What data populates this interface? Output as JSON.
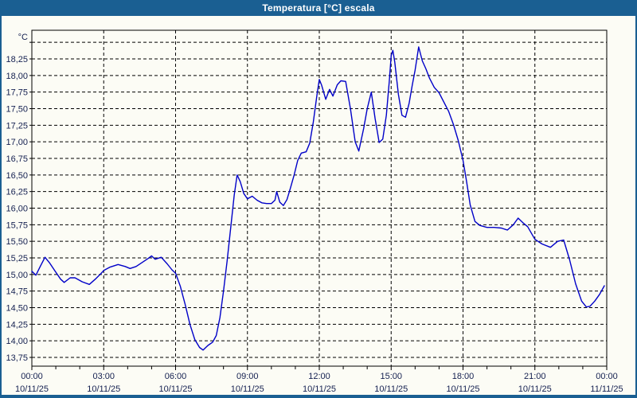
{
  "window": {
    "title": "Temperatura [°C] escala",
    "frame_color": "#1A5F92",
    "title_text_color": "#ffffff"
  },
  "chart_data": {
    "type": "line",
    "title": "Temperatura [°C] escala",
    "unit_label": "°C",
    "line_color": "#0000C8",
    "grid_color": "#000000",
    "label_color": "#142050",
    "grid_style": "dashed",
    "legend": "none",
    "xlim_hours": [
      0,
      24
    ],
    "ylim": [
      13.6,
      18.67
    ],
    "y_ticks": [
      {
        "value": 13.75,
        "label": "13,75"
      },
      {
        "value": 14.0,
        "label": "14,00"
      },
      {
        "value": 14.25,
        "label": "14,25"
      },
      {
        "value": 14.5,
        "label": "14,50"
      },
      {
        "value": 14.75,
        "label": "14,75"
      },
      {
        "value": 15.0,
        "label": "15,00"
      },
      {
        "value": 15.25,
        "label": "15,25"
      },
      {
        "value": 15.5,
        "label": "15,50"
      },
      {
        "value": 15.75,
        "label": "15,75"
      },
      {
        "value": 16.0,
        "label": "16,00"
      },
      {
        "value": 16.25,
        "label": "16,25"
      },
      {
        "value": 16.5,
        "label": "16,50"
      },
      {
        "value": 16.75,
        "label": "16,75"
      },
      {
        "value": 17.0,
        "label": "17,00"
      },
      {
        "value": 17.25,
        "label": "17,25"
      },
      {
        "value": 17.5,
        "label": "17,50"
      },
      {
        "value": 17.75,
        "label": "17,75"
      },
      {
        "value": 18.0,
        "label": "18,00"
      },
      {
        "value": 18.25,
        "label": "18,25"
      },
      {
        "value": 18.5,
        "label": ""
      }
    ],
    "x_ticks": [
      {
        "hour": 0,
        "time": "00:00",
        "date": "10/11/25"
      },
      {
        "hour": 3,
        "time": "03:00",
        "date": "10/11/25"
      },
      {
        "hour": 6,
        "time": "06:00",
        "date": "10/11/25"
      },
      {
        "hour": 9,
        "time": "09:00",
        "date": "10/11/25"
      },
      {
        "hour": 12,
        "time": "12:00",
        "date": "10/11/25"
      },
      {
        "hour": 15,
        "time": "15:00",
        "date": "10/11/25"
      },
      {
        "hour": 18,
        "time": "18:00",
        "date": "10/11/25"
      },
      {
        "hour": 21,
        "time": "21:00",
        "date": "10/11/25"
      },
      {
        "hour": 24,
        "time": "00:00",
        "date": "11/11/25"
      }
    ],
    "series": [
      {
        "name": "Temperatura",
        "x": [
          0,
          0.17,
          0.35,
          0.55,
          0.75,
          0.95,
          1.2,
          1.35,
          1.6,
          1.8,
          2.1,
          2.4,
          2.65,
          2.85,
          3,
          3.25,
          3.6,
          3.9,
          4.1,
          4.35,
          4.6,
          4.85,
          5,
          5.15,
          5.4,
          5.65,
          5.85,
          6,
          6.2,
          6.4,
          6.6,
          6.8,
          7,
          7.15,
          7.35,
          7.55,
          7.7,
          7.85,
          8,
          8.15,
          8.3,
          8.45,
          8.57,
          8.7,
          8.85,
          9,
          9.2,
          9.4,
          9.6,
          9.8,
          10,
          10.15,
          10.22,
          10.35,
          10.5,
          10.65,
          10.8,
          10.95,
          11.1,
          11.25,
          11.45,
          11.6,
          11.75,
          11.9,
          12,
          12.1,
          12.27,
          12.43,
          12.57,
          12.75,
          12.9,
          13.1,
          13.3,
          13.5,
          13.65,
          13.85,
          14,
          14.17,
          14.33,
          14.5,
          14.65,
          14.8,
          14.92,
          15,
          15.07,
          15.15,
          15.3,
          15.45,
          15.6,
          15.75,
          15.88,
          16,
          16.15,
          16.3,
          16.45,
          16.6,
          16.8,
          17,
          17.2,
          17.4,
          17.6,
          17.8,
          18,
          18.15,
          18.3,
          18.5,
          18.7,
          19,
          19.3,
          19.6,
          19.85,
          20.1,
          20.3,
          20.5,
          20.7,
          21,
          21.3,
          21.65,
          21.95,
          22.2,
          22.45,
          22.7,
          22.95,
          23.15,
          23.3,
          23.5,
          23.7,
          23.9
        ],
        "y": [
          15.05,
          14.99,
          15.12,
          15.26,
          15.17,
          15.06,
          14.93,
          14.88,
          14.95,
          14.95,
          14.89,
          14.85,
          14.93,
          15.0,
          15.06,
          15.11,
          15.15,
          15.12,
          15.09,
          15.12,
          15.18,
          15.24,
          15.28,
          15.23,
          15.26,
          15.16,
          15.07,
          15.02,
          14.82,
          14.55,
          14.25,
          14.02,
          13.9,
          13.86,
          13.93,
          13.98,
          14.08,
          14.35,
          14.75,
          15.2,
          15.7,
          16.2,
          16.5,
          16.4,
          16.22,
          16.14,
          16.18,
          16.12,
          16.08,
          16.07,
          16.07,
          16.12,
          16.25,
          16.09,
          16.04,
          16.13,
          16.31,
          16.5,
          16.72,
          16.83,
          16.85,
          16.98,
          17.3,
          17.7,
          17.94,
          17.85,
          17.64,
          17.79,
          17.69,
          17.86,
          17.92,
          17.91,
          17.5,
          17.0,
          16.86,
          17.2,
          17.5,
          17.75,
          17.35,
          16.99,
          17.04,
          17.4,
          17.9,
          18.3,
          18.38,
          18.2,
          17.72,
          17.4,
          17.37,
          17.58,
          17.85,
          18.08,
          18.43,
          18.22,
          18.1,
          17.96,
          17.82,
          17.74,
          17.6,
          17.46,
          17.26,
          17.02,
          16.72,
          16.4,
          16.05,
          15.8,
          15.74,
          15.71,
          15.71,
          15.7,
          15.67,
          15.75,
          15.85,
          15.78,
          15.72,
          15.53,
          15.46,
          15.41,
          15.5,
          15.52,
          15.22,
          14.86,
          14.6,
          14.51,
          14.52,
          14.6,
          14.7,
          14.83
        ]
      }
    ]
  }
}
